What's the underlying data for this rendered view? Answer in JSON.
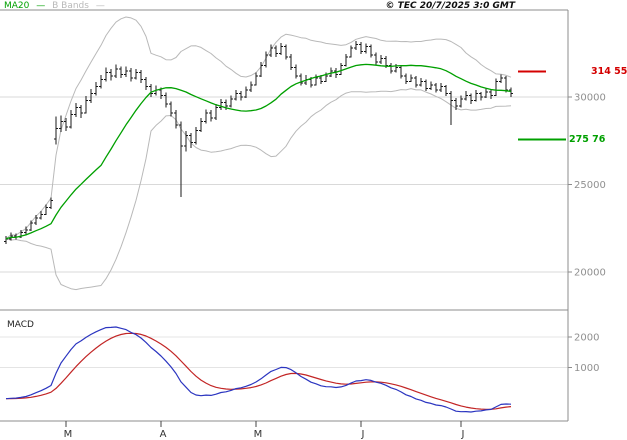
{
  "colors": {
    "ma": "#00a000",
    "bands": "#b9b9b9",
    "bars": "#1a1a1a",
    "macd": "#2b35c0",
    "signal": "#c22525",
    "axis_text": "#909090",
    "grid": "#d9d9d9",
    "grid_light": "#e4e4e4",
    "border": "#8c8c8c"
  },
  "chart_data": {
    "type": "candlestick",
    "title": "",
    "copyright": "© TEC 20/7/2025 3:0 GMT",
    "legend": {
      "ma_label": "MA20",
      "bbands_label": "B Bands",
      "dash": "—"
    },
    "price_axis": {
      "side": "right",
      "ticks": [
        "30000",
        "25000",
        "20000"
      ]
    },
    "macd_axis": {
      "label": "MACD",
      "ticks": [
        "2000",
        "1000"
      ]
    },
    "levels": [
      {
        "label": "314 55",
        "value": 31455,
        "color": "#d40000"
      },
      {
        "label": "275 76",
        "value": 27576,
        "color": "#00a000"
      }
    ],
    "months": [
      {
        "label": "M",
        "index": 12
      },
      {
        "label": "A",
        "index": 31
      },
      {
        "label": "M",
        "index": 50
      },
      {
        "label": "J",
        "index": 71
      },
      {
        "label": "J",
        "index": 91
      }
    ],
    "indicators": {
      "ma": {
        "period": 20
      },
      "bbands": {
        "period": 20,
        "stddev": 2
      },
      "macd": {
        "fast": 12,
        "slow": 26,
        "signal": 9
      }
    },
    "ohlc": [
      [
        21750,
        22050,
        21600,
        21900
      ],
      [
        21900,
        22250,
        21800,
        22050
      ],
      [
        22050,
        22200,
        21850,
        22000
      ],
      [
        22000,
        22400,
        21950,
        22250
      ],
      [
        22250,
        22600,
        22150,
        22400
      ],
      [
        22400,
        22950,
        22350,
        22800
      ],
      [
        22800,
        23250,
        22700,
        23100
      ],
      [
        23100,
        23500,
        23000,
        23300
      ],
      [
        23300,
        23850,
        23250,
        23700
      ],
      [
        23700,
        24250,
        23600,
        24100
      ],
      [
        27600,
        28900,
        27300,
        28200
      ],
      [
        28200,
        28950,
        28000,
        28600
      ],
      [
        28600,
        28800,
        28050,
        28300
      ],
      [
        28300,
        29250,
        28200,
        29000
      ],
      [
        29000,
        29650,
        28850,
        29400
      ],
      [
        29400,
        29550,
        28800,
        29100
      ],
      [
        29100,
        30050,
        29050,
        29800
      ],
      [
        29800,
        30450,
        29650,
        30200
      ],
      [
        30200,
        30850,
        30100,
        30600
      ],
      [
        30600,
        31250,
        30500,
        31000
      ],
      [
        31000,
        31700,
        30900,
        31400
      ],
      [
        31400,
        31600,
        30950,
        31200
      ],
      [
        31200,
        31850,
        31100,
        31600
      ],
      [
        31600,
        31750,
        31100,
        31300
      ],
      [
        31300,
        31750,
        31150,
        31500
      ],
      [
        31500,
        31650,
        30900,
        31100
      ],
      [
        31100,
        31600,
        31000,
        31400
      ],
      [
        31400,
        31550,
        30800,
        31000
      ],
      [
        31000,
        31150,
        30400,
        30600
      ],
      [
        30600,
        30750,
        30000,
        30200
      ],
      [
        30200,
        30650,
        30100,
        30400
      ],
      [
        30400,
        30550,
        29900,
        30100
      ],
      [
        30100,
        30250,
        29400,
        29600
      ],
      [
        29600,
        29750,
        28900,
        29100
      ],
      [
        29100,
        29250,
        28200,
        28400
      ],
      [
        28400,
        28600,
        24300,
        27200
      ],
      [
        27200,
        28050,
        26900,
        27800
      ],
      [
        27800,
        27950,
        27100,
        27400
      ],
      [
        27400,
        28300,
        27300,
        28100
      ],
      [
        28100,
        28800,
        28000,
        28600
      ],
      [
        28600,
        29300,
        28500,
        29100
      ],
      [
        29100,
        29250,
        28600,
        28800
      ],
      [
        28800,
        29600,
        28700,
        29400
      ],
      [
        29400,
        29900,
        29250,
        29700
      ],
      [
        29700,
        29850,
        29250,
        29500
      ],
      [
        29500,
        30100,
        29400,
        29900
      ],
      [
        29900,
        30400,
        29800,
        30200
      ],
      [
        30200,
        30350,
        29800,
        30000
      ],
      [
        30000,
        30600,
        29950,
        30400
      ],
      [
        30400,
        30900,
        30300,
        30700
      ],
      [
        30700,
        31400,
        30650,
        31200
      ],
      [
        31200,
        32000,
        31150,
        31800
      ],
      [
        31800,
        32600,
        31700,
        32400
      ],
      [
        32400,
        33000,
        32300,
        32800
      ],
      [
        32800,
        32950,
        32300,
        32500
      ],
      [
        32500,
        33100,
        32400,
        32900
      ],
      [
        32900,
        33000,
        32150,
        32300
      ],
      [
        32300,
        32450,
        31550,
        31700
      ],
      [
        31700,
        31850,
        31050,
        31200
      ],
      [
        31200,
        31350,
        30650,
        30800
      ],
      [
        30800,
        31250,
        30700,
        31000
      ],
      [
        31000,
        31150,
        30550,
        30700
      ],
      [
        30700,
        31300,
        30650,
        31100
      ],
      [
        31100,
        31250,
        30750,
        30900
      ],
      [
        30900,
        31400,
        30850,
        31200
      ],
      [
        31200,
        31700,
        31150,
        31500
      ],
      [
        31500,
        31650,
        31100,
        31300
      ],
      [
        31300,
        31950,
        31250,
        31800
      ],
      [
        31800,
        32450,
        31750,
        32300
      ],
      [
        32300,
        32950,
        32250,
        32800
      ],
      [
        32800,
        33200,
        32700,
        33000
      ],
      [
        33000,
        33150,
        32450,
        32600
      ],
      [
        32600,
        33050,
        32500,
        32900
      ],
      [
        32900,
        33000,
        32250,
        32400
      ],
      [
        32400,
        32550,
        31850,
        32000
      ],
      [
        32000,
        32400,
        31900,
        32200
      ],
      [
        32200,
        32350,
        31650,
        31800
      ],
      [
        31800,
        31950,
        31350,
        31500
      ],
      [
        31500,
        31900,
        31400,
        31700
      ],
      [
        31700,
        31800,
        31050,
        31200
      ],
      [
        31200,
        31350,
        30750,
        30900
      ],
      [
        30900,
        31300,
        30850,
        31100
      ],
      [
        31100,
        31200,
        30550,
        30700
      ],
      [
        30700,
        31100,
        30600,
        30900
      ],
      [
        30900,
        31000,
        30350,
        30500
      ],
      [
        30500,
        30900,
        30400,
        30700
      ],
      [
        30700,
        30800,
        30250,
        30400
      ],
      [
        30400,
        30800,
        30300,
        30600
      ],
      [
        30600,
        30700,
        30050,
        30200
      ],
      [
        30200,
        30350,
        28400,
        29800
      ],
      [
        29800,
        29950,
        29250,
        29500
      ],
      [
        29500,
        30100,
        29400,
        29900
      ],
      [
        29900,
        30350,
        29800,
        30100
      ],
      [
        30100,
        30200,
        29600,
        29800
      ],
      [
        29800,
        30400,
        29750,
        30200
      ],
      [
        30200,
        30300,
        29800,
        30000
      ],
      [
        30000,
        30500,
        29950,
        30300
      ],
      [
        30300,
        30400,
        29900,
        30100
      ],
      [
        30100,
        31050,
        30050,
        30900
      ],
      [
        30900,
        31300,
        30800,
        31100
      ],
      [
        31100,
        31200,
        30250,
        30400
      ],
      [
        30400,
        30550,
        30000,
        30200
      ]
    ]
  }
}
